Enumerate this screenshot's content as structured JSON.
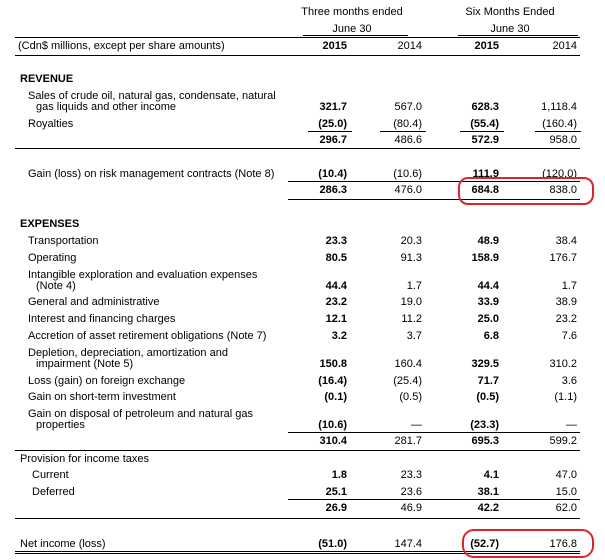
{
  "header": {
    "three_months": "Three months ended",
    "three_months_date": "June 30",
    "six_months": "Six Months Ended",
    "six_months_date": "June 30",
    "units": "(Cdn$ millions, except per share amounts)",
    "years": [
      "2015",
      "2014",
      "2015",
      "2014"
    ]
  },
  "revenue": {
    "heading": "REVENUE",
    "sales_label_1": "Sales of crude oil, natural gas, condensate, natural",
    "sales_label_2": "gas liquids and other income",
    "sales": [
      "321.7",
      "567.0",
      "628.3",
      "1,118.4"
    ],
    "royalties_label": "Royalties",
    "royalties": [
      "(25.0)",
      "(80.4)",
      "(55.4)",
      "(160.4)"
    ],
    "subtotal": [
      "296.7",
      "486.6",
      "572.9",
      "958.0"
    ],
    "gain_label": "Gain (loss) on risk management contracts (Note 8)",
    "gain": [
      "(10.4)",
      "(10.6)",
      "111.9",
      "(120.0)"
    ],
    "total": [
      "286.3",
      "476.0",
      "684.8",
      "838.0"
    ]
  },
  "expenses": {
    "heading": "EXPENSES",
    "rows": [
      {
        "label": [
          "Transportation"
        ],
        "values": [
          "23.3",
          "20.3",
          "48.9",
          "38.4"
        ]
      },
      {
        "label": [
          "Operating"
        ],
        "values": [
          "80.5",
          "91.3",
          "158.9",
          "176.7"
        ]
      },
      {
        "label": [
          "Intangible exploration and evaluation expenses",
          "(Note 4)"
        ],
        "values": [
          "44.4",
          "1.7",
          "44.4",
          "1.7"
        ]
      },
      {
        "label": [
          "General and administrative"
        ],
        "values": [
          "23.2",
          "19.0",
          "33.9",
          "38.9"
        ]
      },
      {
        "label": [
          "Interest and financing charges"
        ],
        "values": [
          "12.1",
          "11.2",
          "25.0",
          "23.2"
        ]
      },
      {
        "label": [
          "Accretion of asset retirement obligations (Note 7)"
        ],
        "values": [
          "3.2",
          "3.7",
          "6.8",
          "7.6"
        ]
      },
      {
        "label": [
          "Depletion, depreciation, amortization and",
          "impairment (Note 5)"
        ],
        "values": [
          "150.8",
          "160.4",
          "329.5",
          "310.2"
        ]
      },
      {
        "label": [
          "Loss (gain) on foreign exchange"
        ],
        "values": [
          "(16.4)",
          "(25.4)",
          "71.7",
          "3.6"
        ]
      },
      {
        "label": [
          "Gain on short-term investment"
        ],
        "values": [
          "(0.1)",
          "(0.5)",
          "(0.5)",
          "(1.1)"
        ]
      },
      {
        "label": [
          "Gain on disposal of petroleum and natural gas",
          "properties"
        ],
        "values": [
          "(10.6)",
          "—",
          "(23.3)",
          "—"
        ]
      }
    ],
    "total": [
      "310.4",
      "281.7",
      "695.3",
      "599.2"
    ]
  },
  "taxes": {
    "heading": "Provision for income taxes",
    "current_label": "Current",
    "current": [
      "1.8",
      "23.3",
      "4.1",
      "47.0"
    ],
    "deferred_label": "Deferred",
    "deferred": [
      "25.1",
      "23.6",
      "38.1",
      "15.0"
    ],
    "total": [
      "26.9",
      "46.9",
      "42.2",
      "62.0"
    ]
  },
  "net_income": {
    "label": "Net income (loss)",
    "values": [
      "(51.0)",
      "147.4",
      "(52.7)",
      "176.8"
    ]
  },
  "colors": {
    "highlight": "#d9262b"
  }
}
